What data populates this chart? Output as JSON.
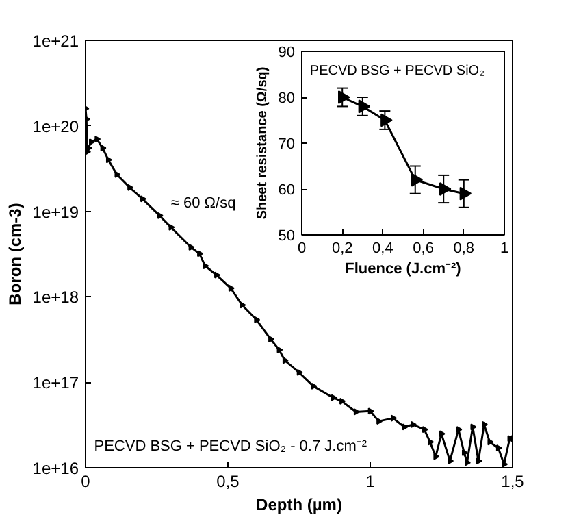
{
  "chart_data": [
    {
      "type": "line",
      "xlabel": "Depth (µm)",
      "ylabel": "Boron (cm-3)",
      "log": "y",
      "color": "#000000",
      "marker": "triangle",
      "annotations": [
        "≈ 60 Ω/sq",
        "PECVD BSG + PECVD SiO₂ - 0.7 J.cm⁻²"
      ],
      "x": [
        0,
        0.003,
        0.006,
        0.01,
        0.02,
        0.04,
        0.06,
        0.08,
        0.11,
        0.155,
        0.2,
        0.26,
        0.3,
        0.37,
        0.4,
        0.42,
        0.46,
        0.51,
        0.55,
        0.6,
        0.65,
        0.68,
        0.7,
        0.75,
        0.8,
        0.87,
        0.9,
        0.95,
        1.0,
        1.03,
        1.08,
        1.12,
        1.15,
        1.19,
        1.21,
        1.23,
        1.25,
        1.28,
        1.31,
        1.33,
        1.34,
        1.36,
        1.38,
        1.4,
        1.42,
        1.45,
        1.47,
        1.49,
        1.5
      ],
      "values": [
        1.6e+20,
        1.2e+20,
        5e+19,
        5.5e+19,
        6.5e+19,
        7e+19,
        5.5e+19,
        4e+19,
        2.7e+19,
        1.9e+19,
        1.4e+19,
        8.9e+18,
        6.5e+18,
        3.8e+18,
        3.2e+18,
        2.3e+18,
        1.8e+18,
        1.26e+18,
        8e+17,
        5.4e+17,
        3.2e+17,
        2.4e+17,
        1.8e+17,
        1.3e+17,
        9e+16,
        6.6e+16,
        6e+16,
        4.5e+16,
        4.6e+16,
        3.5e+16,
        3.8e+16,
        3e+16,
        3.2e+16,
        2.8e+16,
        2e+16,
        1.35e+16,
        2.5e+16,
        1.2e+16,
        2.8e+16,
        1.5e+16,
        1.15e+16,
        3e+16,
        1.2e+16,
        3.2e+16,
        2e+16,
        1.7e+16,
        1.1e+16,
        2.2e+16,
        2.2e+16
      ],
      "xlim": [
        0,
        1.5
      ],
      "ylim": [
        1e+16,
        1e+21
      ],
      "xticks": [
        0,
        {
          "value": 0.5,
          "label": "0,5"
        },
        1,
        {
          "value": 1.5,
          "label": "1,5"
        }
      ],
      "yticks": [
        {
          "value": 1e+16,
          "label": "1e+16"
        },
        {
          "value": 1e+17,
          "label": "1e+17"
        },
        {
          "value": 1e+18,
          "label": "1e+18"
        },
        {
          "value": 1e+19,
          "label": "1e+19"
        },
        {
          "value": 1e+20,
          "label": "1e+20"
        },
        {
          "value": 1e+21,
          "label": "1e+21"
        }
      ]
    },
    {
      "type": "line",
      "title": "PECVD BSG + PECVD SiO₂",
      "xlabel": "Fluence (J.cm⁻²)",
      "ylabel": "Sheet resistance (Ω/sq)",
      "color": "#000000",
      "marker": "triangle",
      "x": [
        0.2,
        0.3,
        0.41,
        0.56,
        0.7,
        0.8
      ],
      "values": [
        80,
        78,
        75,
        62,
        60,
        59
      ],
      "errors": [
        2,
        2,
        2,
        3,
        3,
        3
      ],
      "xlim": [
        0,
        1
      ],
      "ylim": [
        50,
        90
      ],
      "xticks": [
        0,
        {
          "value": 0.2,
          "label": "0,2"
        },
        {
          "value": 0.4,
          "label": "0,4"
        },
        {
          "value": 0.6,
          "label": "0,6"
        },
        {
          "value": 0.8,
          "label": "0,8"
        },
        1
      ],
      "yticks": [
        50,
        60,
        70,
        80,
        90
      ]
    }
  ]
}
